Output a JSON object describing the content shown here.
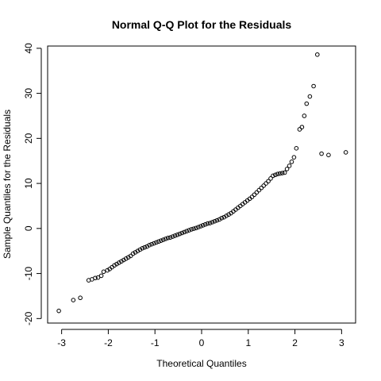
{
  "chart_data": {
    "type": "scatter",
    "title": "Normal Q-Q Plot for the Residuals",
    "xlabel": "Theoretical Quantiles",
    "ylabel": "Sample Quantiles for the Residuals",
    "xlim": [
      -3.3,
      3.3
    ],
    "ylim": [
      -21,
      40.5
    ],
    "xticks": [
      -3,
      -2,
      -1,
      0,
      1,
      2,
      3
    ],
    "xtick_labels": [
      "-3",
      "-2",
      "-1",
      "0",
      "1",
      "2",
      "3"
    ],
    "yticks": [
      -20,
      -10,
      0,
      10,
      20,
      30,
      40
    ],
    "ytick_labels": [
      "-20",
      "-10",
      "0",
      "10",
      "20",
      "30",
      "40"
    ],
    "grid": false,
    "legend": "none",
    "marker": "open-circle",
    "colors": {
      "points": "#000000",
      "frame": "#000000",
      "background": "#ffffff"
    },
    "series": [
      {
        "x": [
          -3.06,
          -2.75,
          -2.6,
          -2.42,
          -2.35,
          -2.28,
          -2.22,
          -2.15,
          -2.1,
          -2.02,
          -1.97,
          -1.92,
          -1.87,
          -1.82,
          -1.77,
          -1.72,
          -1.67,
          -1.62,
          -1.57,
          -1.52,
          -1.47,
          -1.42,
          -1.37,
          -1.32,
          -1.27,
          -1.22,
          -1.17,
          -1.12,
          -1.07,
          -1.02,
          -0.97,
          -0.92,
          -0.87,
          -0.82,
          -0.77,
          -0.72,
          -0.67,
          -0.62,
          -0.57,
          -0.52,
          -0.47,
          -0.42,
          -0.37,
          -0.32,
          -0.27,
          -0.22,
          -0.17,
          -0.12,
          -0.07,
          -0.02,
          0.03,
          0.08,
          0.13,
          0.18,
          0.23,
          0.28,
          0.33,
          0.38,
          0.43,
          0.48,
          0.53,
          0.58,
          0.63,
          0.68,
          0.73,
          0.78,
          0.83,
          0.88,
          0.93,
          0.98,
          1.03,
          1.08,
          1.13,
          1.18,
          1.23,
          1.28,
          1.33,
          1.38,
          1.43,
          1.48,
          1.53,
          1.58,
          1.63,
          1.68,
          1.73,
          1.78,
          1.83,
          1.88,
          1.93,
          1.98,
          2.03,
          2.1,
          2.15,
          2.2,
          2.25,
          2.32,
          2.4,
          2.48,
          2.57,
          2.72,
          3.09
        ],
        "y": [
          -18.3,
          -15.9,
          -15.4,
          -11.5,
          -11.3,
          -11.0,
          -10.9,
          -10.5,
          -9.6,
          -9.3,
          -9.0,
          -8.6,
          -8.2,
          -7.9,
          -7.6,
          -7.3,
          -7.0,
          -6.7,
          -6.4,
          -6.1,
          -5.6,
          -5.3,
          -5.0,
          -4.7,
          -4.4,
          -4.2,
          -4.0,
          -3.7,
          -3.5,
          -3.3,
          -3.1,
          -2.9,
          -2.7,
          -2.5,
          -2.3,
          -2.1,
          -2.0,
          -1.8,
          -1.6,
          -1.4,
          -1.2,
          -1.0,
          -0.8,
          -0.6,
          -0.4,
          -0.2,
          -0.05,
          0.1,
          0.3,
          0.5,
          0.7,
          0.9,
          1.1,
          1.2,
          1.4,
          1.6,
          1.8,
          2.0,
          2.3,
          2.5,
          2.8,
          3.1,
          3.4,
          3.8,
          4.2,
          4.6,
          5.0,
          5.4,
          5.8,
          6.2,
          6.6,
          7.0,
          7.5,
          8.0,
          8.5,
          9.0,
          9.5,
          10.0,
          10.5,
          11.1,
          11.7,
          11.9,
          12.1,
          12.2,
          12.3,
          12.4,
          13.2,
          13.9,
          14.8,
          15.8,
          17.8,
          22.0,
          22.5,
          25.0,
          27.7,
          29.3,
          31.6,
          38.6,
          16.6,
          16.3,
          16.9
        ]
      }
    ]
  }
}
